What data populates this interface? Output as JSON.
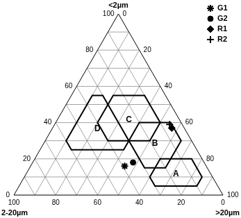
{
  "chart_data": {
    "type": "ternary",
    "grid": true,
    "legend": "upper right",
    "axes": {
      "clay": {
        "label": "<2µm",
        "lim": [
          0,
          100
        ],
        "ticks": [
          0,
          20,
          40,
          60,
          80,
          100
        ]
      },
      "silt": {
        "label": "2-20µm",
        "lim": [
          0,
          100
        ],
        "ticks": [
          0,
          20,
          40,
          60,
          80,
          100
        ]
      },
      "sand": {
        "label": ">20µm",
        "lim": [
          0,
          100
        ],
        "ticks": [
          0,
          20,
          40,
          60,
          80,
          100
        ]
      }
    },
    "regions": [
      {
        "label": "A",
        "clay": [
          5,
          20
        ],
        "silt": [
          5,
          30
        ],
        "sand": [
          60,
          85
        ]
      },
      {
        "label": "B",
        "clay": [
          15,
          40
        ],
        "silt": [
          5,
          30
        ],
        "sand": [
          40,
          65
        ]
      },
      {
        "label": "C",
        "clay": [
          30,
          55
        ],
        "silt": [
          10,
          40
        ],
        "sand": [
          20,
          50
        ]
      },
      {
        "label": "D",
        "clay": [
          25,
          55
        ],
        "silt": [
          30,
          60
        ],
        "sand": [
          10,
          40
        ]
      }
    ],
    "series": [
      {
        "name": "G1",
        "marker": "star",
        "color": "#000000",
        "clay": 16,
        "silt": 39,
        "sand": 45
      },
      {
        "name": "G2",
        "marker": "circle",
        "color": "#000000",
        "clay": 18,
        "silt": 34,
        "sand": 48
      },
      {
        "name": "R1",
        "marker": "diamond",
        "color": "#000000",
        "clay": 37,
        "silt": 6,
        "sand": 57
      },
      {
        "name": "R2",
        "marker": "plus",
        "color": "#000000",
        "clay": 39,
        "silt": 6,
        "sand": 55
      }
    ]
  }
}
